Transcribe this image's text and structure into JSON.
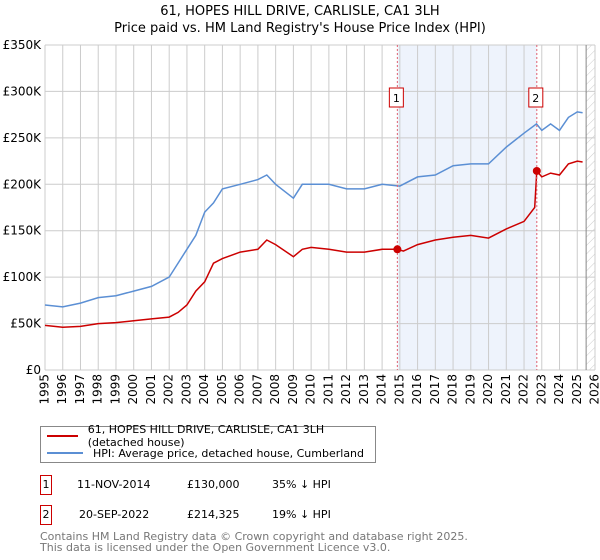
{
  "title": {
    "line1": "61, HOPES HILL DRIVE, CARLISLE, CA1 3LH",
    "line2": "Price paid vs. HM Land Registry's House Price Index (HPI)"
  },
  "colors": {
    "property": "#cc0000",
    "hpi": "#5b8fd4",
    "shade": "#eef3fc"
  },
  "chart_data": {
    "type": "line",
    "title": "61, HOPES HILL DRIVE, CARLISLE, CA1 3LH — Price paid vs. HM Land Registry's House Price Index (HPI)",
    "xlim": [
      1995,
      2026
    ],
    "ylim": [
      0,
      350000
    ],
    "xticks": [
      "1995",
      "1996",
      "1997",
      "1998",
      "1999",
      "2000",
      "2001",
      "2002",
      "2003",
      "2004",
      "2005",
      "2006",
      "2007",
      "2008",
      "2009",
      "2010",
      "2011",
      "2012",
      "2013",
      "2014",
      "2015",
      "2016",
      "2017",
      "2018",
      "2019",
      "2020",
      "2021",
      "2022",
      "2023",
      "2024",
      "2025",
      "2026"
    ],
    "yticks": [
      {
        "v": 0,
        "label": "£0"
      },
      {
        "v": 50000,
        "label": "£50K"
      },
      {
        "v": 100000,
        "label": "£100K"
      },
      {
        "v": 150000,
        "label": "£150K"
      },
      {
        "v": 200000,
        "label": "£200K"
      },
      {
        "v": 250000,
        "label": "£250K"
      },
      {
        "v": 300000,
        "label": "£300K"
      },
      {
        "v": 350000,
        "label": "£350K"
      }
    ],
    "grid": true,
    "shaded_range": [
      2014.86,
      2022.72
    ],
    "hatched_from": 2025.5,
    "series": [
      {
        "name": "61, HOPES HILL DRIVE, CARLISLE, CA1 3LH (detached house)",
        "color": "#cc0000",
        "x": [
          1995,
          1996,
          1997,
          1998,
          1999,
          2000,
          2001,
          2002,
          2002.5,
          2003,
          2003.5,
          2004,
          2004.5,
          2005,
          2006,
          2007,
          2007.5,
          2008,
          2009,
          2009.5,
          2010,
          2011,
          2012,
          2013,
          2014,
          2014.86,
          2015.2,
          2016,
          2017,
          2018,
          2019,
          2020,
          2021,
          2022,
          2022.6,
          2022.72,
          2023,
          2023.5,
          2024,
          2024.5,
          2025,
          2025.3
        ],
        "y": [
          48000,
          46000,
          47000,
          50000,
          51000,
          53000,
          55000,
          57000,
          62000,
          70000,
          85000,
          95000,
          115000,
          120000,
          127000,
          130000,
          140000,
          135000,
          122000,
          130000,
          132000,
          130000,
          127000,
          127000,
          130000,
          130000,
          128000,
          135000,
          140000,
          143000,
          145000,
          142000,
          152000,
          160000,
          175000,
          214325,
          208000,
          212000,
          210000,
          222000,
          225000,
          224000
        ]
      },
      {
        "name": "HPI: Average price, detached house, Cumberland",
        "color": "#5b8fd4",
        "x": [
          1995,
          1996,
          1997,
          1998,
          1999,
          2000,
          2001,
          2002,
          2003,
          2003.5,
          2004,
          2004.5,
          2005,
          2006,
          2007,
          2007.5,
          2008,
          2009,
          2009.5,
          2010,
          2011,
          2012,
          2013,
          2014,
          2015,
          2016,
          2017,
          2018,
          2019,
          2020,
          2021,
          2022,
          2022.7,
          2023,
          2023.5,
          2024,
          2024.5,
          2025,
          2025.3
        ],
        "y": [
          70000,
          68000,
          72000,
          78000,
          80000,
          85000,
          90000,
          100000,
          130000,
          145000,
          170000,
          180000,
          195000,
          200000,
          205000,
          210000,
          200000,
          185000,
          200000,
          200000,
          200000,
          195000,
          195000,
          200000,
          198000,
          208000,
          210000,
          220000,
          222000,
          222000,
          240000,
          255000,
          265000,
          258000,
          265000,
          258000,
          272000,
          278000,
          277000
        ]
      }
    ],
    "sales": [
      {
        "label": "1",
        "x": 2014.86,
        "y": 130000
      },
      {
        "label": "2",
        "x": 2022.72,
        "y": 214325
      }
    ]
  },
  "legend": {
    "property": "61, HOPES HILL DRIVE, CARLISLE, CA1 3LH (detached house)",
    "hpi": "HPI: Average price, detached house, Cumberland"
  },
  "transactions": [
    {
      "num": "1",
      "date": "11-NOV-2014",
      "price": "£130,000",
      "delta": "35% ↓ HPI"
    },
    {
      "num": "2",
      "date": "20-SEP-2022",
      "price": "£214,325",
      "delta": "19% ↓ HPI"
    }
  ],
  "footer": {
    "line1": "Contains HM Land Registry data © Crown copyright and database right 2025.",
    "line2": "This data is licensed under the Open Government Licence v3.0."
  }
}
